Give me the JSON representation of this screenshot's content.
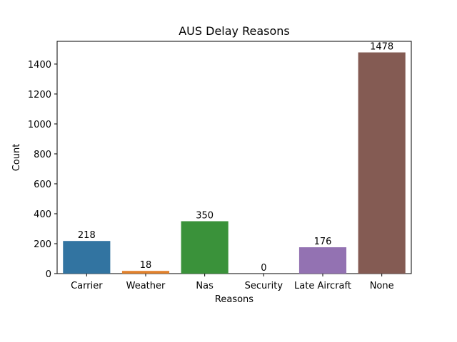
{
  "chart_data": {
    "type": "bar",
    "title": "AUS Delay Reasons",
    "xlabel": "Reasons",
    "ylabel": "Count",
    "categories": [
      "Carrier",
      "Weather",
      "Nas",
      "Security",
      "Late Aircraft",
      "None"
    ],
    "values": [
      218,
      18,
      350,
      0,
      176,
      1478
    ],
    "data_labels": [
      "218",
      "18",
      "350",
      "0",
      "176",
      "1478"
    ],
    "colors": [
      "#3274a1",
      "#e1812c",
      "#3a923a",
      "#c03d3e",
      "#9372b2",
      "#845b53"
    ],
    "ylim": [
      0,
      1552
    ],
    "yticks": [
      0,
      200,
      400,
      600,
      800,
      1000,
      1200,
      1400
    ],
    "ytick_labels": [
      "0",
      "200",
      "400",
      "600",
      "800",
      "1000",
      "1200",
      "1400"
    ],
    "grid": false,
    "legend": false
  }
}
